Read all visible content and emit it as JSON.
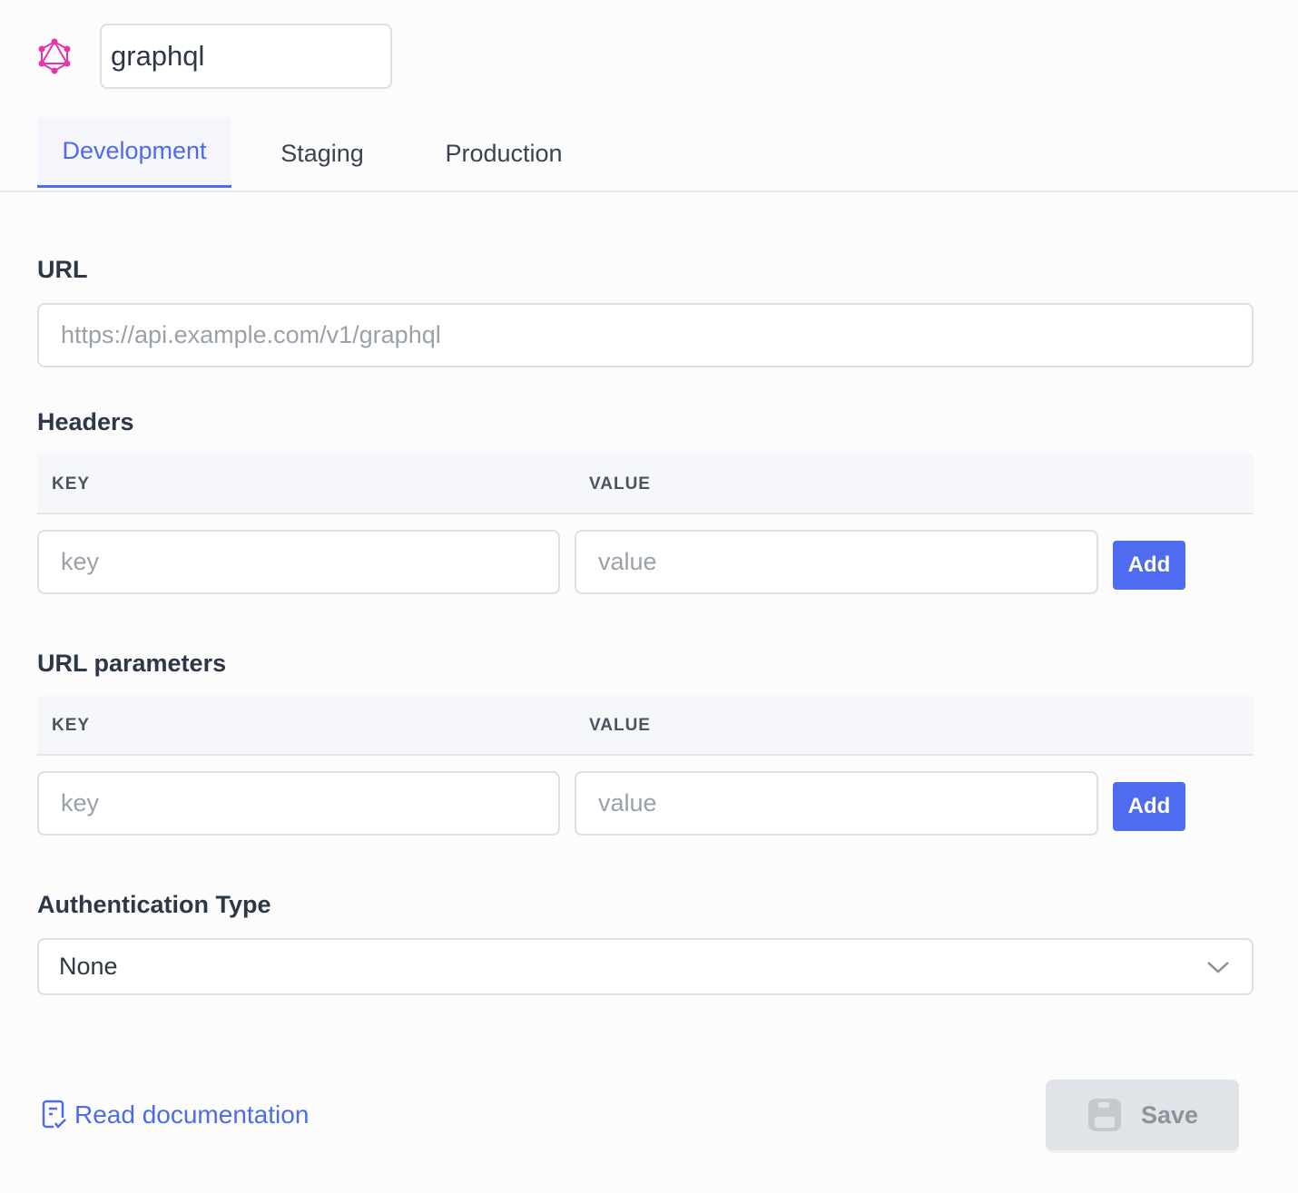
{
  "header": {
    "icon": "graphql-logo-icon",
    "name_value": "graphql",
    "accent": "#e535ab"
  },
  "tabs": [
    {
      "label": "Development",
      "active": true
    },
    {
      "label": "Staging"
    },
    {
      "label": "Production"
    }
  ],
  "url": {
    "label": "URL",
    "placeholder": "https://api.example.com/v1/graphql"
  },
  "headers": {
    "label": "Headers",
    "key_header": "KEY",
    "value_header": "VALUE",
    "key_placeholder": "key",
    "value_placeholder": "value",
    "add_label": "Add"
  },
  "url_params": {
    "label": "URL parameters",
    "key_header": "KEY",
    "value_header": "VALUE",
    "key_placeholder": "key",
    "value_placeholder": "value",
    "add_label": "Add"
  },
  "auth": {
    "label": "Authentication Type",
    "selected": "None"
  },
  "footer": {
    "doc_link": "Read documentation",
    "save_label": "Save",
    "save_disabled": true
  },
  "colors": {
    "primary": "#4f6bed",
    "add_button": "#4f6bf0",
    "save_disabled_bg": "#e0e3e7"
  }
}
